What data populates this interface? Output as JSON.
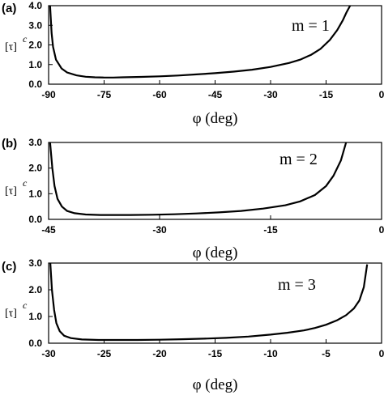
{
  "chart_data": [
    {
      "panel_label": "(a)",
      "type": "line",
      "xlabel": "φ (deg)",
      "ylabel": "[τ]",
      "ylabel_sub": "c",
      "annotation": "m = 1",
      "xlim": [
        -90,
        0
      ],
      "ylim": [
        0,
        4
      ],
      "xticks": [
        -90,
        -75,
        -60,
        -45,
        -30,
        -15,
        0
      ],
      "yticks": [
        0.0,
        1.0,
        2.0,
        3.0,
        4.0
      ],
      "xtick_labels": [
        "-90",
        "-75",
        "-60",
        "-45",
        "-30",
        "-15",
        "0"
      ],
      "ytick_labels": [
        "0.0",
        "1.0",
        "2.0",
        "3.0",
        "4.0"
      ],
      "grid": false,
      "series": [
        {
          "x": [
            -89.6,
            -89.2,
            -88.8,
            -88.0,
            -86.5,
            -85.0,
            -82.5,
            -80.0,
            -77.5,
            -75.0,
            -72.5,
            -70.0,
            -65.0,
            -60.0,
            -55.0,
            -50.0,
            -45.0,
            -40.0,
            -35.0,
            -30.0,
            -25.0,
            -22.0,
            -19.0,
            -16.5,
            -14.0,
            -12.0,
            -10.5,
            -9.5,
            -8.5
          ],
          "y": [
            4.0,
            2.6,
            1.9,
            1.25,
            0.8,
            0.6,
            0.45,
            0.38,
            0.35,
            0.34,
            0.34,
            0.35,
            0.37,
            0.4,
            0.44,
            0.5,
            0.56,
            0.64,
            0.74,
            0.88,
            1.08,
            1.25,
            1.5,
            1.8,
            2.25,
            2.75,
            3.25,
            3.65,
            4.0
          ]
        }
      ]
    },
    {
      "panel_label": "(b)",
      "type": "line",
      "xlabel": "φ (deg)",
      "ylabel": "[τ]",
      "ylabel_sub": "c",
      "annotation": "m = 2",
      "xlim": [
        -45,
        0
      ],
      "ylim": [
        0,
        3
      ],
      "xticks": [
        -45,
        -30,
        -15,
        0
      ],
      "yticks": [
        0.0,
        1.0,
        2.0,
        3.0
      ],
      "xtick_labels": [
        "-45",
        "-30",
        "-15",
        "0"
      ],
      "ytick_labels": [
        "0.0",
        "1.0",
        "2.0",
        "3.0"
      ],
      "grid": false,
      "series": [
        {
          "x": [
            -44.8,
            -44.5,
            -44.2,
            -43.8,
            -43.2,
            -42.5,
            -41.5,
            -40.0,
            -38.0,
            -36.0,
            -34.0,
            -31.0,
            -28.0,
            -25.0,
            -22.0,
            -19.0,
            -16.0,
            -13.0,
            -11.0,
            -9.0,
            -7.5,
            -6.5,
            -5.5,
            -4.8
          ],
          "y": [
            3.0,
            2.0,
            1.3,
            0.8,
            0.5,
            0.33,
            0.24,
            0.19,
            0.17,
            0.17,
            0.17,
            0.18,
            0.2,
            0.23,
            0.27,
            0.33,
            0.42,
            0.55,
            0.7,
            0.95,
            1.3,
            1.7,
            2.3,
            3.0
          ]
        }
      ]
    },
    {
      "panel_label": "(c)",
      "type": "line",
      "xlabel": "φ (deg)",
      "ylabel": "[τ]",
      "ylabel_sub": "c",
      "annotation": "m = 3",
      "xlim": [
        -30,
        0
      ],
      "ylim": [
        0,
        3
      ],
      "xticks": [
        -30,
        -25,
        -20,
        -15,
        -10,
        -5,
        0
      ],
      "yticks": [
        0.0,
        1.0,
        2.0,
        3.0
      ],
      "xtick_labels": [
        "-30",
        "-25",
        "-20",
        "-15",
        "-10",
        "-5",
        "0"
      ],
      "ytick_labels": [
        "0.0",
        "1.0",
        "2.0",
        "3.0"
      ],
      "grid": false,
      "series": [
        {
          "x": [
            -29.85,
            -29.7,
            -29.5,
            -29.3,
            -29.0,
            -28.6,
            -28.0,
            -27.0,
            -25.5,
            -24.0,
            -22.0,
            -20.0,
            -18.0,
            -16.0,
            -14.0,
            -12.0,
            -10.0,
            -8.5,
            -7.0,
            -6.0,
            -5.0,
            -4.0,
            -3.2,
            -2.5,
            -2.0,
            -1.6,
            -1.3
          ],
          "y": [
            3.0,
            2.0,
            1.25,
            0.75,
            0.45,
            0.28,
            0.19,
            0.14,
            0.12,
            0.12,
            0.12,
            0.13,
            0.15,
            0.17,
            0.2,
            0.25,
            0.32,
            0.39,
            0.48,
            0.57,
            0.69,
            0.86,
            1.05,
            1.3,
            1.6,
            2.1,
            2.95
          ]
        }
      ]
    }
  ]
}
